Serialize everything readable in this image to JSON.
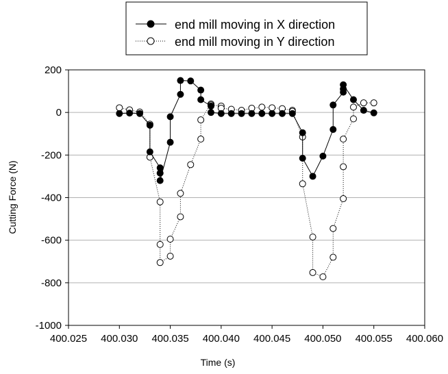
{
  "chart_data": {
    "type": "line",
    "title": "",
    "xlabel": "Time (s)",
    "ylabel": "Cutting Force (N)",
    "xlim": [
      400.025,
      400.06
    ],
    "ylim": [
      -1000,
      200
    ],
    "xticks": [
      400.025,
      400.03,
      400.035,
      400.04,
      400.045,
      400.05,
      400.055,
      400.06
    ],
    "xtick_labels": [
      "400.025",
      "400.030",
      "400.035",
      "400.040",
      "400.045",
      "400.050",
      "400.055",
      "400.060"
    ],
    "yticks": [
      -1000,
      -800,
      -600,
      -400,
      -200,
      0,
      200
    ],
    "ytick_labels": [
      "-1000",
      "-800",
      "-600",
      "-400",
      "-200",
      "0",
      "200"
    ],
    "grid": "horizontal",
    "legend_position": "top-center",
    "series": [
      {
        "name": "end mill moving in X direction",
        "marker": "filled-circle",
        "line": "solid",
        "color": "#000000",
        "points": [
          [
            400.03,
            -5
          ],
          [
            400.031,
            -3
          ],
          [
            400.032,
            -5
          ],
          [
            400.033,
            -60
          ],
          [
            400.033,
            -185
          ],
          [
            400.034,
            -260
          ],
          [
            400.034,
            -285
          ],
          [
            400.034,
            -320
          ],
          [
            400.035,
            -140
          ],
          [
            400.035,
            -20
          ],
          [
            400.036,
            85
          ],
          [
            400.036,
            150
          ],
          [
            400.037,
            148
          ],
          [
            400.038,
            105
          ],
          [
            400.038,
            60
          ],
          [
            400.039,
            30
          ],
          [
            400.039,
            0
          ],
          [
            400.04,
            -5
          ],
          [
            400.041,
            -5
          ],
          [
            400.042,
            -5
          ],
          [
            400.043,
            -5
          ],
          [
            400.044,
            -5
          ],
          [
            400.045,
            -5
          ],
          [
            400.046,
            -5
          ],
          [
            400.047,
            -5
          ],
          [
            400.048,
            -95
          ],
          [
            400.048,
            -215
          ],
          [
            400.049,
            -300
          ],
          [
            400.05,
            -205
          ],
          [
            400.051,
            -80
          ],
          [
            400.051,
            35
          ],
          [
            400.052,
            95
          ],
          [
            400.052,
            110
          ],
          [
            400.052,
            130
          ],
          [
            400.053,
            60
          ],
          [
            400.054,
            10
          ],
          [
            400.055,
            -2
          ]
        ]
      },
      {
        "name": "end mill moving in Y direction",
        "marker": "open-circle",
        "line": "dotted",
        "color": "#000000",
        "points": [
          [
            400.03,
            22
          ],
          [
            400.031,
            12
          ],
          [
            400.032,
            2
          ],
          [
            400.033,
            -55
          ],
          [
            400.033,
            -210
          ],
          [
            400.034,
            -420
          ],
          [
            400.034,
            -620
          ],
          [
            400.034,
            -705
          ],
          [
            400.035,
            -675
          ],
          [
            400.035,
            -595
          ],
          [
            400.036,
            -490
          ],
          [
            400.036,
            -380
          ],
          [
            400.037,
            -245
          ],
          [
            400.038,
            -125
          ],
          [
            400.038,
            -35
          ],
          [
            400.039,
            40
          ],
          [
            400.039,
            35
          ],
          [
            400.04,
            30
          ],
          [
            400.04,
            20
          ],
          [
            400.041,
            15
          ],
          [
            400.042,
            10
          ],
          [
            400.043,
            20
          ],
          [
            400.044,
            25
          ],
          [
            400.045,
            22
          ],
          [
            400.046,
            18
          ],
          [
            400.047,
            10
          ],
          [
            400.047,
            5
          ],
          [
            400.048,
            -115
          ],
          [
            400.048,
            -335
          ],
          [
            400.049,
            -585
          ],
          [
            400.049,
            -752
          ],
          [
            400.05,
            -772
          ],
          [
            400.051,
            -680
          ],
          [
            400.051,
            -545
          ],
          [
            400.052,
            -405
          ],
          [
            400.052,
            -255
          ],
          [
            400.052,
            -125
          ],
          [
            400.053,
            -30
          ],
          [
            400.053,
            25
          ],
          [
            400.054,
            45
          ],
          [
            400.055,
            45
          ]
        ]
      }
    ]
  }
}
